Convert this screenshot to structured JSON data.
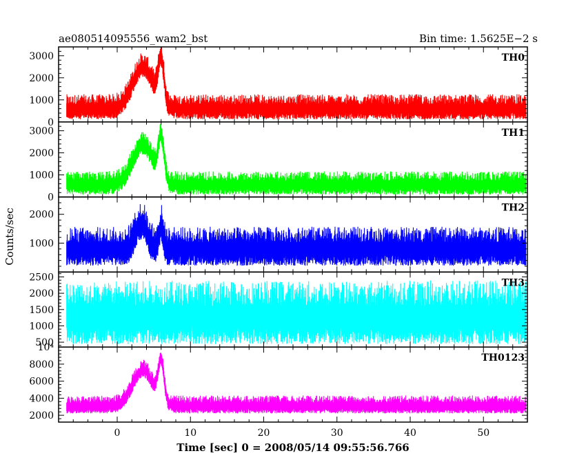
{
  "chart_data": {
    "type": "line",
    "title": "ae080514095556_wam2_bst",
    "bin_time": "Bin time: 1.5625E−2 s",
    "xlabel": "Time [sec] 0 = 2008/05/14 09:55:56.766",
    "ylabel": "Counts/sec",
    "x_range": [
      -8,
      56
    ],
    "x_ticks": [
      0,
      10,
      20,
      30,
      40,
      50
    ],
    "x_tick_labels": [
      "0",
      "10",
      "20",
      "30",
      "40",
      "50"
    ],
    "x_minor_step": 2,
    "panels": [
      {
        "name": "TH0",
        "color": "#ff0000",
        "y_range": [
          0,
          3400
        ],
        "y_ticks": [
          0,
          1000,
          2000,
          3000
        ],
        "y_tick_labels": [
          "0",
          "1000",
          "2000",
          "3000"
        ],
        "y_minor_step": 200,
        "baseline": 650,
        "noise": 380,
        "burst": [
          {
            "t": 3.5,
            "w": 1.4,
            "a": 1900
          },
          {
            "t": 6.0,
            "w": 0.4,
            "a": 2000
          }
        ]
      },
      {
        "name": "TH1",
        "color": "#00ff00",
        "y_range": [
          0,
          3400
        ],
        "y_ticks": [
          0,
          1000,
          2000,
          3000
        ],
        "y_tick_labels": [
          "0",
          "1000",
          "2000",
          "3000"
        ],
        "y_minor_step": 200,
        "baseline": 600,
        "noise": 350,
        "burst": [
          {
            "t": 3.5,
            "w": 1.4,
            "a": 1800
          },
          {
            "t": 6.0,
            "w": 0.4,
            "a": 1900
          }
        ]
      },
      {
        "name": "TH2",
        "color": "#0000ff",
        "y_range": [
          0,
          2600
        ],
        "y_ticks": [
          1000,
          2000
        ],
        "y_tick_labels": [
          "1000",
          "2000"
        ],
        "y_minor_step": 200,
        "baseline": 850,
        "noise": 450,
        "burst": [
          {
            "t": 3.3,
            "w": 0.8,
            "a": 900
          },
          {
            "t": 6.0,
            "w": 0.3,
            "a": 800
          }
        ]
      },
      {
        "name": "TH3",
        "color": "#00ffff",
        "y_range": [
          350,
          2650
        ],
        "y_ticks": [
          500,
          1000,
          1500,
          2000,
          2500
        ],
        "y_tick_labels": [
          "500",
          "1000",
          "1500",
          "2000",
          "2500"
        ],
        "y_minor_step": 100,
        "baseline": 1350,
        "noise": 650,
        "burst": []
      },
      {
        "name": "TH0123",
        "color": "#ff00ff",
        "y_range": [
          1200,
          10000
        ],
        "y_ticks": [
          2000,
          4000,
          6000,
          8000,
          10000
        ],
        "y_tick_labels": [
          "2000",
          "4000",
          "6000",
          "8000",
          "10⁴"
        ],
        "y_minor_step": 400,
        "baseline": 3200,
        "noise": 700,
        "burst": [
          {
            "t": 3.5,
            "w": 1.4,
            "a": 4200
          },
          {
            "t": 6.0,
            "w": 0.4,
            "a": 4800
          }
        ]
      }
    ]
  }
}
